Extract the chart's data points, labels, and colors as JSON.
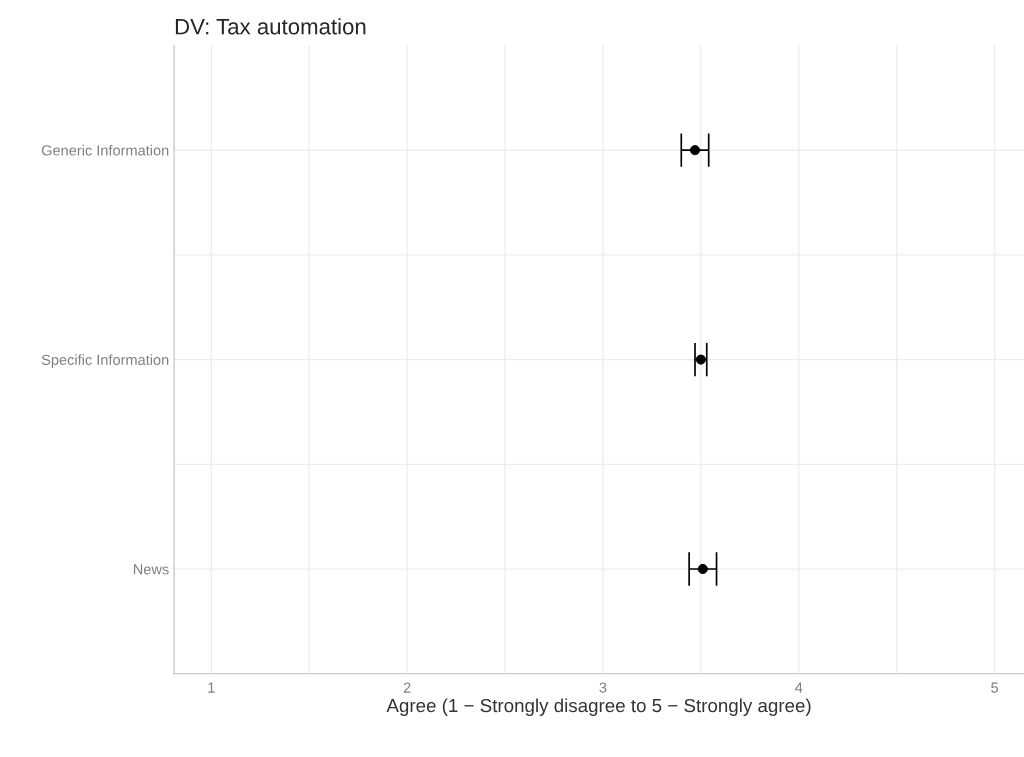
{
  "chart_data": {
    "type": "scatter",
    "title": "DV: Tax automation",
    "xlabel": "Agree (1 − Strongly disagree to 5 − Strongly agree)",
    "orientation": "horizontal",
    "categories": [
      "Generic Information",
      "Specific Information",
      "News"
    ],
    "values": [
      3.47,
      3.5,
      3.51
    ],
    "errors": [
      0.07,
      0.03,
      0.07
    ],
    "color": "#000000",
    "marker": "circle",
    "xlim": [
      0.81,
      5.15
    ],
    "xticks": [
      1,
      2,
      3,
      4,
      5
    ],
    "grid": true,
    "legend": false
  }
}
